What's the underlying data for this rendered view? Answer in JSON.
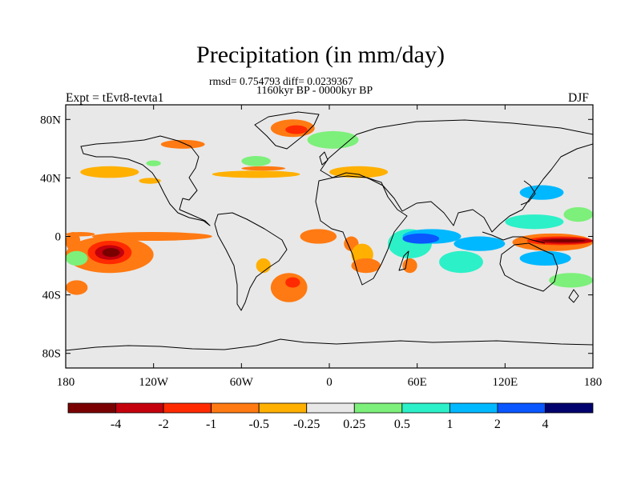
{
  "chart_data": {
    "type": "heatmap",
    "title": "Precipitation (in mm/day)",
    "stats": "rmsd= 0.754793 diff= 0.0239367",
    "period": "1160kyr BP - 0000kyr BP",
    "experiment": "Expt = tEvt8-tevta1",
    "season": "DJF",
    "xlabel": "",
    "ylabel": "",
    "xlim": [
      -180,
      180
    ],
    "ylim": [
      -90,
      90
    ],
    "x_ticks": [
      {
        "value": -180,
        "label": "180"
      },
      {
        "value": -120,
        "label": "120W"
      },
      {
        "value": -60,
        "label": "60W"
      },
      {
        "value": 0,
        "label": "0"
      },
      {
        "value": 60,
        "label": "60E"
      },
      {
        "value": 120,
        "label": "120E"
      },
      {
        "value": 180,
        "label": "180"
      }
    ],
    "y_ticks": [
      {
        "value": 80,
        "label": "80N"
      },
      {
        "value": 40,
        "label": "40N"
      },
      {
        "value": 0,
        "label": "0"
      },
      {
        "value": -40,
        "label": "40S"
      },
      {
        "value": -80,
        "label": "80S"
      }
    ],
    "colorbar": {
      "levels": [
        "-4",
        "-2",
        "-1",
        "-0.5",
        "-0.25",
        "0.25",
        "0.5",
        "1",
        "2",
        "4"
      ],
      "colors": [
        "#7a0000",
        "#c4000c",
        "#ff2a00",
        "#ff7a12",
        "#ffb000",
        "#e8e8e8",
        "#7cf07a",
        "#2cf0c8",
        "#00b8ff",
        "#0a56ff",
        "#02026e"
      ]
    },
    "anomaly_regions": [
      {
        "cls": 3,
        "lon": [
          -180,
          -160
        ],
        "lat": [
          0,
          3
        ]
      },
      {
        "cls": 3,
        "lon": [
          -162,
          -80
        ],
        "lat": [
          -3,
          3
        ]
      },
      {
        "cls": 3,
        "lon": [
          -180,
          -120
        ],
        "lat": [
          -25,
          0
        ]
      },
      {
        "cls": 2,
        "lon": [
          -165,
          -135
        ],
        "lat": [
          -19,
          -3
        ]
      },
      {
        "cls": 1,
        "lon": [
          -160,
          -140
        ],
        "lat": [
          -16,
          -6
        ]
      },
      {
        "cls": 0,
        "lon": [
          -155,
          -143
        ],
        "lat": [
          -14,
          -8
        ]
      },
      {
        "cls": 3,
        "lon": [
          -180,
          -165
        ],
        "lat": [
          -40,
          -30
        ]
      },
      {
        "cls": 3,
        "lon": [
          -180,
          -170
        ],
        "lat": [
          -10,
          3
        ]
      },
      {
        "cls": 4,
        "lon": [
          -170,
          -130
        ],
        "lat": [
          40,
          48
        ]
      },
      {
        "cls": 4,
        "lon": [
          -130,
          -115
        ],
        "lat": [
          36,
          40
        ]
      },
      {
        "cls": 6,
        "lon": [
          -125,
          -115
        ],
        "lat": [
          48,
          52
        ]
      },
      {
        "cls": 3,
        "lon": [
          -115,
          -85
        ],
        "lat": [
          60,
          66
        ]
      },
      {
        "cls": 4,
        "lon": [
          -80,
          -20
        ],
        "lat": [
          40,
          45
        ]
      },
      {
        "cls": 3,
        "lon": [
          -60,
          -30
        ],
        "lat": [
          45,
          48
        ]
      },
      {
        "cls": 6,
        "lon": [
          -60,
          -40
        ],
        "lat": [
          48,
          55
        ]
      },
      {
        "cls": 3,
        "lon": [
          -40,
          -10
        ],
        "lat": [
          68,
          80
        ]
      },
      {
        "cls": 2,
        "lon": [
          -30,
          -15
        ],
        "lat": [
          70,
          76
        ]
      },
      {
        "cls": 6,
        "lon": [
          -15,
          20
        ],
        "lat": [
          60,
          72
        ]
      },
      {
        "cls": 4,
        "lon": [
          0,
          40
        ],
        "lat": [
          40,
          48
        ]
      },
      {
        "cls": 5,
        "lon": [
          50,
          90
        ],
        "lat": [
          30,
          42
        ]
      },
      {
        "cls": 3,
        "lon": [
          -40,
          -15
        ],
        "lat": [
          -45,
          -25
        ]
      },
      {
        "cls": 2,
        "lon": [
          -30,
          -20
        ],
        "lat": [
          -35,
          -28
        ]
      },
      {
        "cls": 4,
        "lon": [
          -50,
          -40
        ],
        "lat": [
          -25,
          -15
        ]
      },
      {
        "cls": 3,
        "lon": [
          -20,
          5
        ],
        "lat": [
          -5,
          5
        ]
      },
      {
        "cls": 3,
        "lon": [
          10,
          20
        ],
        "lat": [
          -10,
          0
        ]
      },
      {
        "cls": 4,
        "lon": [
          15,
          30
        ],
        "lat": [
          -20,
          -5
        ]
      },
      {
        "cls": 3,
        "lon": [
          15,
          35
        ],
        "lat": [
          -25,
          -15
        ]
      },
      {
        "cls": 7,
        "lon": [
          40,
          70
        ],
        "lat": [
          -15,
          5
        ]
      },
      {
        "cls": 8,
        "lon": [
          50,
          90
        ],
        "lat": [
          -5,
          5
        ]
      },
      {
        "cls": 9,
        "lon": [
          50,
          75
        ],
        "lat": [
          -5,
          2
        ]
      },
      {
        "cls": 3,
        "lon": [
          50,
          60
        ],
        "lat": [
          -25,
          -15
        ]
      },
      {
        "cls": 8,
        "lon": [
          85,
          120
        ],
        "lat": [
          -10,
          0
        ]
      },
      {
        "cls": 7,
        "lon": [
          75,
          105
        ],
        "lat": [
          -25,
          -10
        ]
      },
      {
        "cls": 7,
        "lon": [
          120,
          160
        ],
        "lat": [
          5,
          15
        ]
      },
      {
        "cls": 8,
        "lon": [
          130,
          160
        ],
        "lat": [
          25,
          35
        ]
      },
      {
        "cls": 6,
        "lon": [
          160,
          180
        ],
        "lat": [
          10,
          20
        ]
      },
      {
        "cls": 3,
        "lon": [
          125,
          180
        ],
        "lat": [
          -10,
          2
        ]
      },
      {
        "cls": 2,
        "lon": [
          135,
          180
        ],
        "lat": [
          -6,
          0
        ]
      },
      {
        "cls": 1,
        "lon": [
          140,
          180
        ],
        "lat": [
          -5,
          -1
        ]
      },
      {
        "cls": 0,
        "lon": [
          145,
          175
        ],
        "lat": [
          -4,
          -2
        ]
      },
      {
        "cls": 8,
        "lon": [
          130,
          165
        ],
        "lat": [
          -20,
          -10
        ]
      },
      {
        "cls": 6,
        "lon": [
          150,
          180
        ],
        "lat": [
          -35,
          -25
        ]
      },
      {
        "cls": 6,
        "lon": [
          -180,
          -165
        ],
        "lat": [
          -20,
          -10
        ]
      }
    ]
  }
}
